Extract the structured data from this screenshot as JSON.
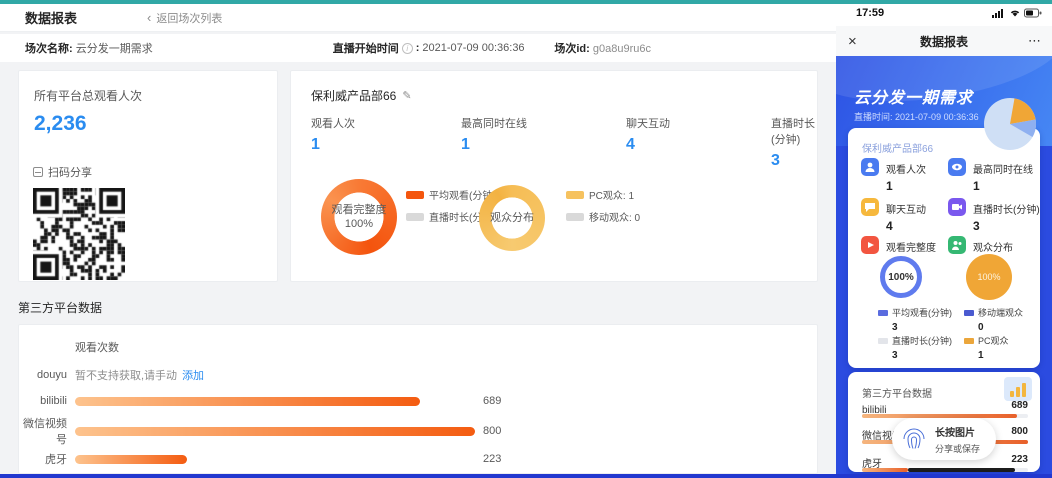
{
  "icons": {
    "back": "‹",
    "info": "i",
    "edit": "✎",
    "close": "×",
    "more": "⋯"
  },
  "desktop": {
    "title": "数据报表",
    "back_label": "返回场次列表",
    "meta": {
      "name_label": "场次名称:",
      "name_value": "云分发一期需求",
      "time_label": "直播开始时间",
      "time_sep": ":",
      "time_value": "2021-07-09 00:36:36",
      "id_label": "场次id:",
      "id_value": "g0a8u9ru6c"
    },
    "total_card": {
      "label": "所有平台总观看人次",
      "value": "2,236",
      "share_label": "扫码分享"
    },
    "channel_card": {
      "name": "保利威产品部66",
      "stats": [
        {
          "label": "观看人次",
          "value": "1"
        },
        {
          "label": "最高同时在线",
          "value": "1"
        },
        {
          "label": "聊天互动",
          "value": "4"
        },
        {
          "label": "直播时长(分钟)",
          "value": "3"
        }
      ],
      "donut1": {
        "center_line1": "观看完整度",
        "center_line2": "100%",
        "legend": [
          {
            "label": "平均观看(分钟): 3",
            "color": "#f4560e"
          },
          {
            "label": "直播时长(分钟): 3",
            "color": "#d9d9d9"
          }
        ]
      },
      "donut2": {
        "center_line1": "观众分布",
        "legend": [
          {
            "label": "PC观众: 1",
            "color": "#f6c25f"
          },
          {
            "label": "移动观众: 0",
            "color": "#d9d9d9"
          }
        ]
      }
    },
    "third_party": {
      "section_label": "第三方平台数据",
      "chart_title": "观看次数",
      "douyu": {
        "label": "douyu",
        "note": "暂不支持获取,请手动",
        "link": "添加"
      },
      "rows": [
        {
          "label": "bilibili",
          "value": 689
        },
        {
          "label": "微信视频号",
          "value": 800
        },
        {
          "label": "虎牙",
          "value": 223
        }
      ],
      "max": 800
    }
  },
  "mobile": {
    "status": {
      "time": "17:59"
    },
    "nav": {
      "title": "数据报表"
    },
    "header": {
      "title": "云分发一期需求",
      "time_label": "直播时间:",
      "time_value": "2021-07-09 00:36:36"
    },
    "card": {
      "name": "保利威产品部66",
      "stats": [
        {
          "label": "观看人次",
          "value": "1",
          "icon": "viewer-icon",
          "color": "#4a7bf0"
        },
        {
          "label": "最高同时在线",
          "value": "1",
          "icon": "eye-icon",
          "color": "#4a7bf0"
        },
        {
          "label": "聊天互动",
          "value": "4",
          "icon": "chat-icon",
          "color": "#f6b83d"
        },
        {
          "label": "直播时长(分钟)",
          "value": "3",
          "icon": "video-icon",
          "color": "#7a58ee"
        },
        {
          "label": "观看完整度",
          "value": "",
          "icon": "play-icon",
          "color": "#f25540"
        },
        {
          "label": "观众分布",
          "value": "",
          "icon": "audience-icon",
          "color": "#35b873"
        }
      ],
      "ring_value": "100%",
      "circle_value": "100%",
      "legend": [
        {
          "label": "平均观看(分钟)",
          "value": "3",
          "color": "#5a6cdf"
        },
        {
          "label": "直播时长(分钟)",
          "value": "3",
          "color": "#e3e5ea"
        },
        {
          "label": "移动端观众",
          "value": "0",
          "color": "#4a5ad0"
        },
        {
          "label": "PC观众",
          "value": "1",
          "color": "#eba63b"
        }
      ]
    },
    "third_party": {
      "title": "第三方平台数据",
      "rows": [
        {
          "label": "bilibili",
          "value": 689
        },
        {
          "label": "微信视频号",
          "value": 800
        },
        {
          "label": "虎牙",
          "value": 223
        }
      ],
      "max": 800
    },
    "overlay": {
      "line1": "长按图片",
      "line2": "分享或保存"
    }
  },
  "colors": {
    "accent_blue": "#2a8cf0",
    "bar_orange": "#f45c11",
    "donut_orange": "#f4540e",
    "donut_yellow": "#f6c25f",
    "mobile_bg": "#2b4be0",
    "top_strip": "#31a8a6",
    "bottom_strip": "#2238cf"
  },
  "chart_data": [
    {
      "type": "pie",
      "title": "观看完整度",
      "center_label": "100%",
      "labels": [
        "平均观看(分钟)",
        "直播时长(分钟)"
      ],
      "values": [
        3,
        3
      ],
      "colors": [
        "#f4560e",
        "#d9d9d9"
      ],
      "legend_position": "right"
    },
    {
      "type": "pie",
      "title": "观众分布",
      "labels": [
        "PC观众",
        "移动观众"
      ],
      "values": [
        1,
        0
      ],
      "colors": [
        "#f6c25f",
        "#d9d9d9"
      ],
      "legend_position": "right"
    },
    {
      "type": "bar",
      "title": "观看次数",
      "orientation": "horizontal",
      "categories": [
        "douyu",
        "bilibili",
        "微信视频号",
        "虎牙"
      ],
      "values": [
        null,
        689,
        800,
        223
      ],
      "xlim": [
        0,
        800
      ],
      "grid": false,
      "note": "douyu: 暂不支持获取,请手动添加"
    }
  ]
}
